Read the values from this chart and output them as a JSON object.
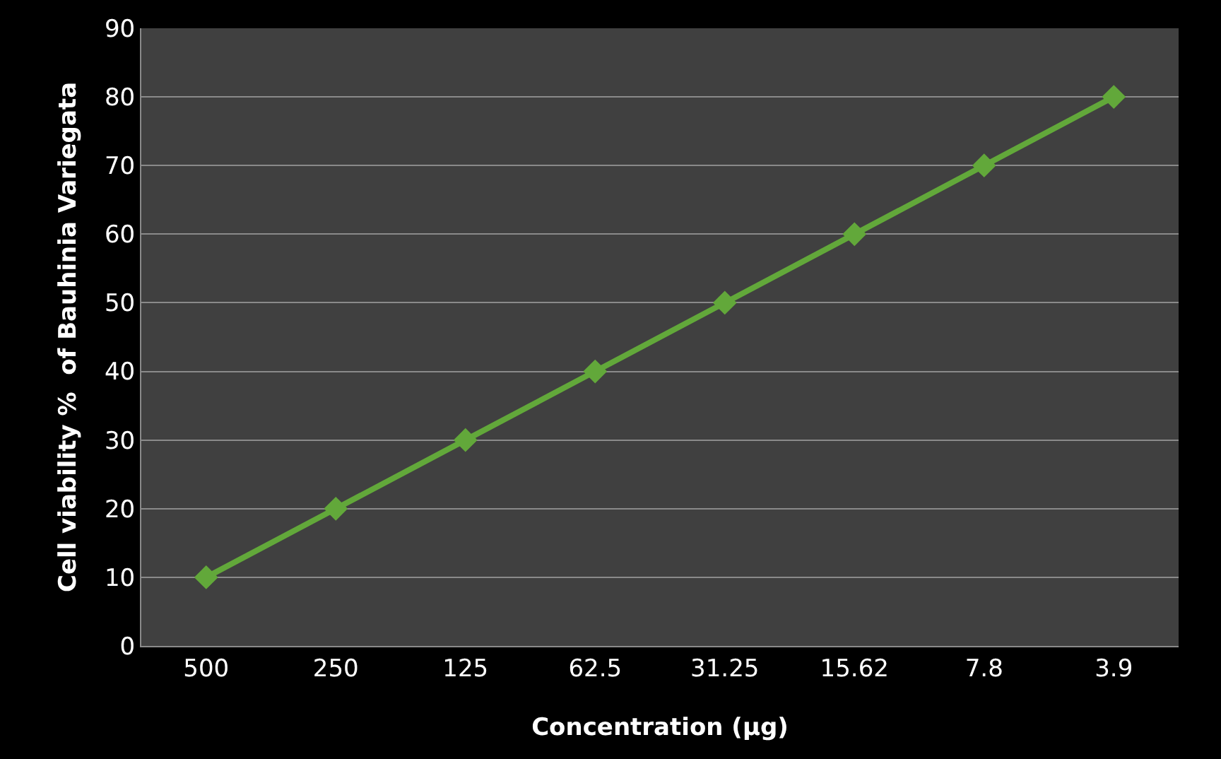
{
  "chart_data": {
    "type": "line",
    "xlabel": "Concentration (µg)",
    "ylabel": "Cell viability %  of Bauhinia Variegata",
    "categories": [
      "500",
      "250",
      "125",
      "62.5",
      "31.25",
      "15.62",
      "7.8",
      "3.9"
    ],
    "series": [
      {
        "color": "#62a83a",
        "values": [
          10,
          20,
          30,
          40,
          50,
          60,
          70,
          80
        ]
      }
    ],
    "ylim": [
      0,
      90
    ],
    "yticks": [
      0,
      10,
      20,
      30,
      40,
      50,
      60,
      70,
      80,
      90
    ],
    "grid": "y",
    "legend": false,
    "marker": "diamond",
    "line_style": "solid"
  }
}
